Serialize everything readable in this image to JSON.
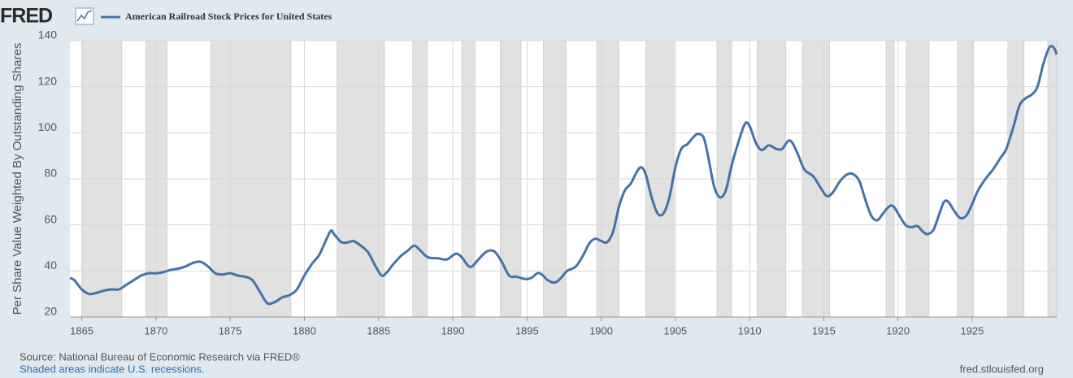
{
  "chart_data": {
    "type": "line",
    "logo": "FRED",
    "ylabel": "Per Share Value Weighted By Outstanding Shares",
    "source": "Source: National Bureau of Economic Research via FRED®",
    "note": "Shaded areas indicate U.S. recessions.",
    "site": "fred.stlouisfed.org",
    "xlim": [
      1864.2,
      1930.7
    ],
    "xticks": [
      1865,
      1870,
      1875,
      1880,
      1885,
      1890,
      1895,
      1900,
      1905,
      1910,
      1915,
      1920,
      1925
    ],
    "ylim": [
      20,
      140
    ],
    "yticks": [
      20,
      40,
      60,
      80,
      100,
      120,
      140
    ],
    "grid": true,
    "recessions": [
      [
        1865.05,
        1867.7
      ],
      [
        1869.3,
        1870.75
      ],
      [
        1873.7,
        1879.1
      ],
      [
        1882.2,
        1885.4
      ],
      [
        1887.3,
        1888.3
      ],
      [
        1890.6,
        1891.5
      ],
      [
        1893.2,
        1894.6
      ],
      [
        1896.1,
        1897.65
      ],
      [
        1899.7,
        1901.2
      ],
      [
        1903.0,
        1904.9
      ],
      [
        1907.8,
        1908.8
      ],
      [
        1910.5,
        1912.45
      ],
      [
        1913.55,
        1915.4
      ],
      [
        1919.2,
        1919.75
      ],
      [
        1920.55,
        1922.1
      ],
      [
        1924.0,
        1925.1
      ],
      [
        1927.4,
        1928.5
      ],
      [
        1930.1,
        1930.7
      ]
    ],
    "x": [
      1864.2,
      1864.5,
      1865,
      1865.5,
      1866,
      1866.5,
      1867,
      1867.5,
      1868,
      1868.5,
      1869,
      1869.5,
      1870,
      1870.5,
      1871,
      1871.5,
      1872,
      1872.5,
      1873,
      1873.5,
      1874,
      1874.5,
      1875,
      1875.5,
      1876,
      1876.5,
      1877,
      1877.5,
      1878,
      1878.5,
      1879,
      1879.5,
      1880,
      1880.5,
      1881,
      1881.5,
      1881.8,
      1882,
      1882.5,
      1883,
      1883.3,
      1883.8,
      1884.3,
      1884.8,
      1885.2,
      1885.5,
      1886,
      1886.5,
      1887,
      1887.4,
      1887.8,
      1888.3,
      1889,
      1889.6,
      1890.2,
      1890.6,
      1891,
      1891.3,
      1891.8,
      1892.3,
      1892.8,
      1893.3,
      1893.8,
      1894.3,
      1894.9,
      1895.3,
      1895.7,
      1896,
      1896.4,
      1896.9,
      1897.3,
      1897.7,
      1898.3,
      1898.8,
      1899.2,
      1899.6,
      1900,
      1900.4,
      1900.8,
      1901.2,
      1901.6,
      1902,
      1902.4,
      1902.7,
      1903,
      1903.4,
      1903.8,
      1904.2,
      1904.6,
      1905,
      1905.4,
      1905.8,
      1906.2,
      1906.5,
      1906.9,
      1907.2,
      1907.6,
      1908,
      1908.4,
      1908.8,
      1909.3,
      1909.7,
      1910,
      1910.4,
      1910.8,
      1911.3,
      1911.8,
      1912.2,
      1912.6,
      1912.9,
      1913.3,
      1913.7,
      1914.3,
      1914.8,
      1915.2,
      1915.6,
      1916.1,
      1916.6,
      1917,
      1917.4,
      1917.8,
      1918.2,
      1918.6,
      1919,
      1919.4,
      1919.7,
      1920.1,
      1920.5,
      1920.9,
      1921.3,
      1921.7,
      1922,
      1922.4,
      1922.8,
      1923.1,
      1923.4,
      1923.8,
      1924.2,
      1924.6,
      1925,
      1925.4,
      1925.9,
      1926.4,
      1926.9,
      1927.3,
      1927.8,
      1928.2,
      1928.6,
      1929,
      1929.4,
      1929.8,
      1930.2,
      1930.5,
      1930.7
    ],
    "series": [
      {
        "name": "American Railroad Stock Prices for United States",
        "color": "#4572a7",
        "values": [
          37,
          36,
          32,
          30,
          30.5,
          31.5,
          32,
          32,
          34,
          36,
          38,
          39,
          39,
          39.5,
          40.5,
          41,
          42,
          43.5,
          44,
          42,
          39,
          38.5,
          39,
          38,
          37.5,
          36,
          31,
          26,
          26.5,
          28.5,
          29.5,
          32,
          38,
          43,
          47,
          54,
          57.5,
          56,
          52.5,
          52.5,
          53,
          51,
          48,
          42,
          38,
          39,
          43,
          46.5,
          49,
          51,
          49,
          46,
          45.5,
          45,
          47.5,
          46,
          42.5,
          42,
          45.5,
          48.5,
          48.5,
          44,
          38,
          37.5,
          36.5,
          37,
          39,
          38.5,
          36,
          35,
          37,
          40,
          42,
          47,
          52,
          54,
          53,
          52.5,
          57,
          68,
          75,
          78,
          83,
          85,
          82,
          72,
          65,
          65,
          72,
          85,
          93,
          95,
          98,
          99.5,
          98,
          90,
          77,
          72,
          75,
          86,
          97,
          104,
          103,
          96,
          92.5,
          94.5,
          93,
          93,
          96.5,
          95.5,
          90,
          84,
          81,
          76,
          72.5,
          74,
          79,
          82,
          82,
          79,
          71,
          64,
          62,
          65,
          68,
          68,
          64,
          60,
          59,
          59.5,
          57,
          56,
          58,
          65,
          70,
          70,
          66,
          63,
          64,
          69,
          75,
          80,
          84,
          89,
          93,
          103,
          112,
          115,
          116.5,
          120,
          130,
          137,
          137,
          134
        ]
      }
    ]
  }
}
